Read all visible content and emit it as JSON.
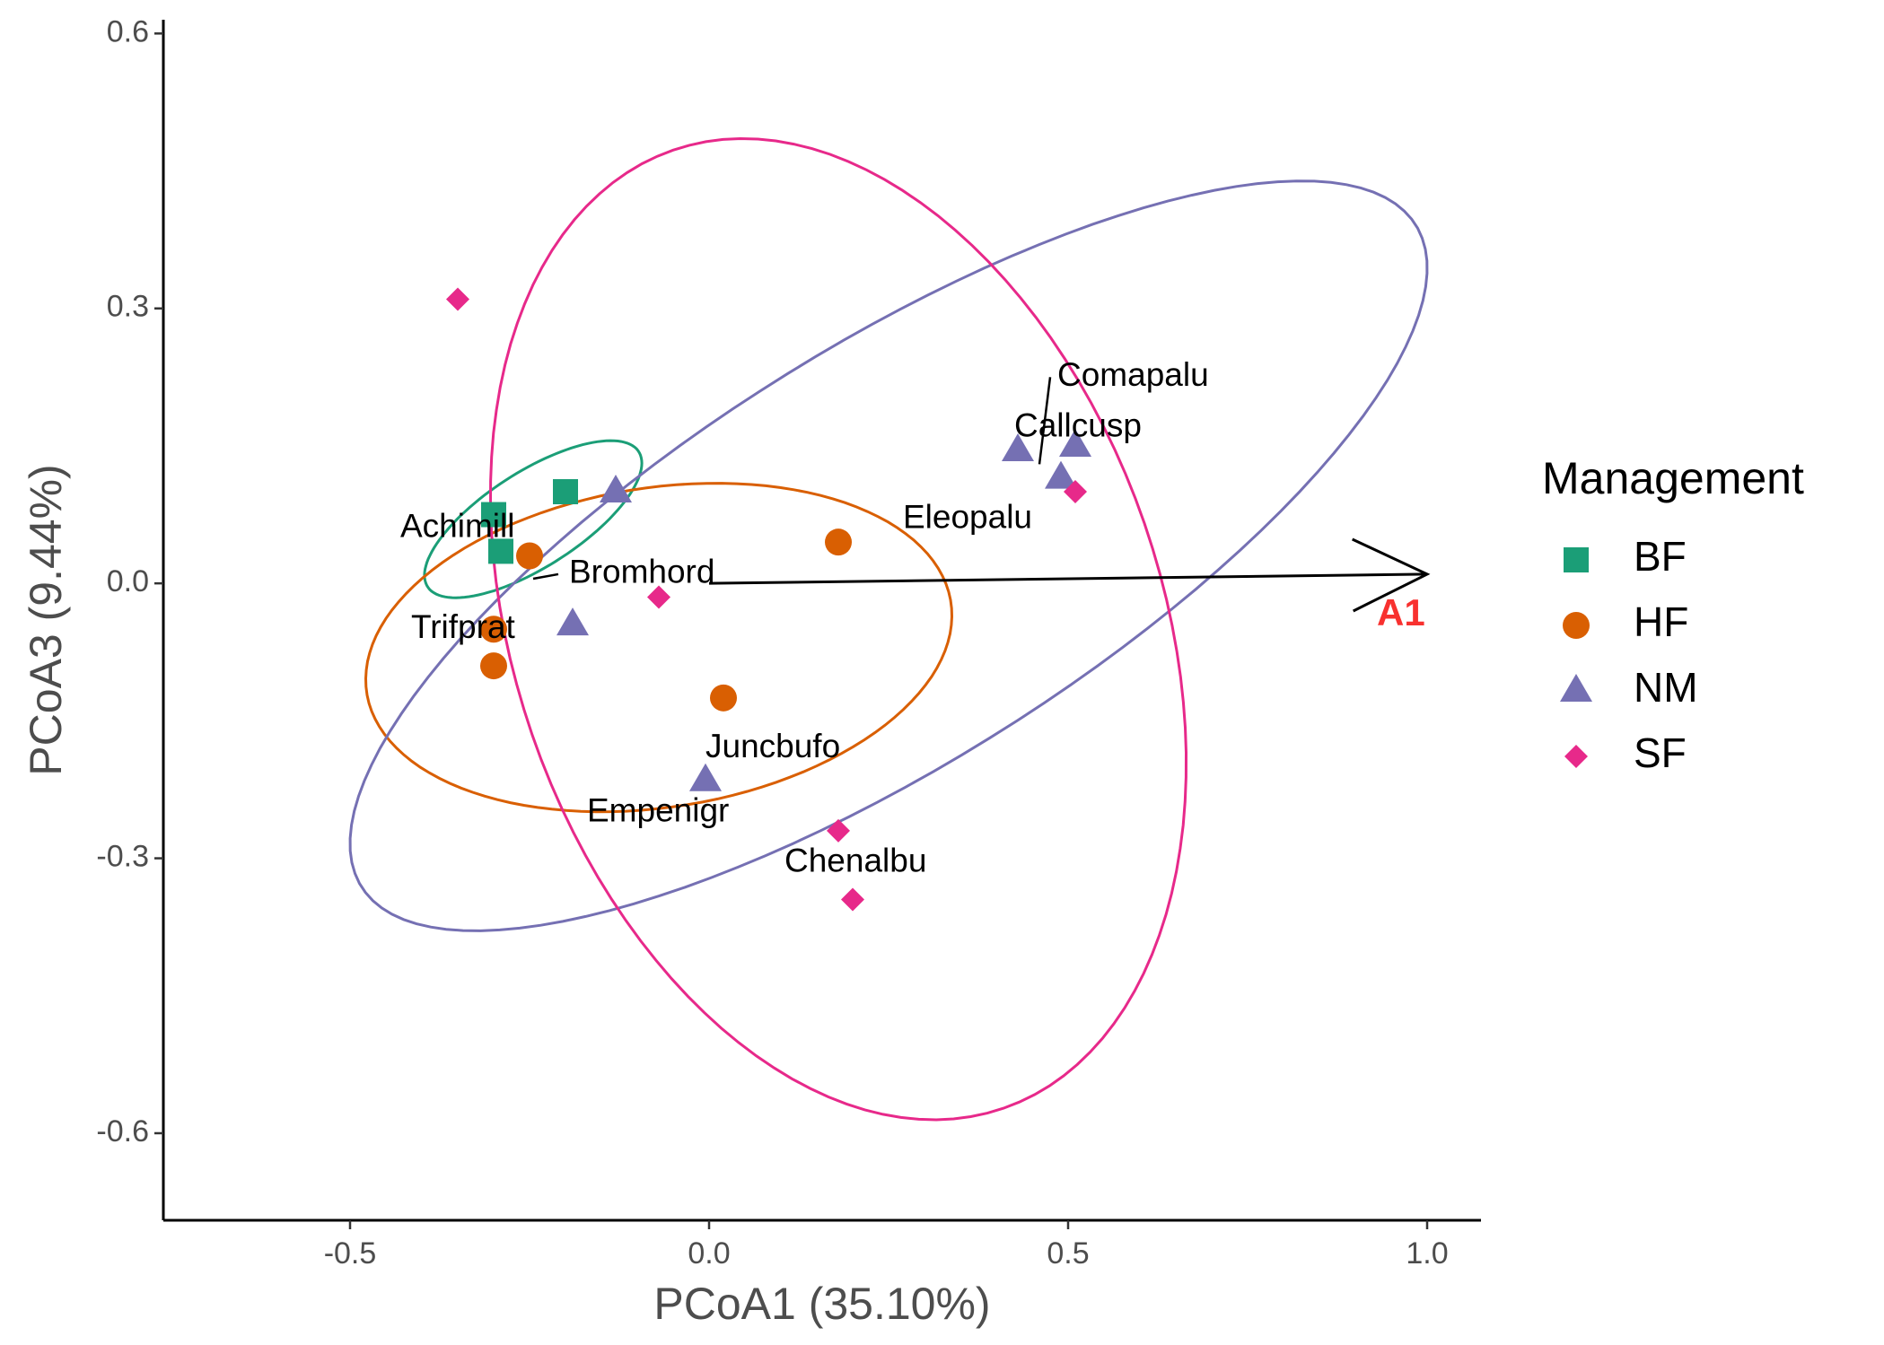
{
  "chart_data": {
    "type": "scatter",
    "xlabel": "PCoA1 (35.10%)",
    "ylabel": "PCoA3 (9.44%)",
    "xlim": [
      -0.76,
      1.075
    ],
    "ylim": [
      -0.695,
      0.615
    ],
    "x_ticks": [
      -0.5,
      0.0,
      0.5,
      1.0
    ],
    "x_tick_labels": [
      "-0.5",
      "0.0",
      "0.5",
      "1.0"
    ],
    "y_ticks": [
      -0.6,
      -0.3,
      0.0,
      0.3,
      0.6
    ],
    "y_tick_labels": [
      "-0.6",
      "-0.3",
      "0.0",
      "0.3",
      "0.6"
    ],
    "grid": false,
    "legend": {
      "title": "Management",
      "placement": "right",
      "entries": [
        {
          "label": "BF",
          "shape": "square",
          "color": "#1b9e77"
        },
        {
          "label": "HF",
          "shape": "circle",
          "color": "#d95f02"
        },
        {
          "label": "NM",
          "shape": "triangle",
          "color": "#7570b3"
        },
        {
          "label": "SF",
          "shape": "diamond",
          "color": "#e7298a"
        }
      ]
    },
    "series": [
      {
        "name": "BF",
        "color": "#1b9e77",
        "shape": "square",
        "points": [
          [
            -0.3,
            0.075
          ],
          [
            -0.2,
            0.1
          ],
          [
            -0.29,
            0.035
          ]
        ],
        "ellipse": {
          "cx": -0.245,
          "cy": 0.07,
          "rx": 0.165,
          "ry": 0.055,
          "angle_deg": 25
        }
      },
      {
        "name": "HF",
        "color": "#d95f02",
        "shape": "circle",
        "points": [
          [
            -0.25,
            0.03
          ],
          [
            -0.3,
            -0.05
          ],
          [
            -0.3,
            -0.09
          ],
          [
            0.02,
            -0.125
          ],
          [
            0.18,
            0.045
          ]
        ],
        "ellipse": {
          "cx": -0.07,
          "cy": -0.07,
          "rx": 0.41,
          "ry": 0.175,
          "angle_deg": 6
        }
      },
      {
        "name": "NM",
        "color": "#7570b3",
        "shape": "triangle",
        "points": [
          [
            -0.13,
            0.1
          ],
          [
            -0.19,
            -0.045
          ],
          [
            -0.005,
            -0.215
          ],
          [
            0.43,
            0.145
          ],
          [
            0.51,
            0.15
          ],
          [
            0.49,
            0.115
          ]
        ],
        "ellipse": {
          "cx": 0.25,
          "cy": 0.03,
          "rx": 0.82,
          "ry": 0.24,
          "angle_deg": 25
        }
      },
      {
        "name": "SF",
        "color": "#e7298a",
        "shape": "diamond",
        "points": [
          [
            -0.35,
            0.31
          ],
          [
            -0.07,
            -0.015
          ],
          [
            0.18,
            -0.27
          ],
          [
            0.2,
            -0.345
          ],
          [
            0.51,
            0.1
          ]
        ],
        "ellipse": {
          "cx": 0.18,
          "cy": -0.05,
          "rx": 0.58,
          "ry": 0.43,
          "angle_deg": -55
        }
      }
    ],
    "species": [
      {
        "name": "Comapalu",
        "x": 0.485,
        "y": 0.225
      },
      {
        "name": "Callcusp",
        "x": 0.425,
        "y": 0.17
      },
      {
        "name": "Eleopalu",
        "x": 0.27,
        "y": 0.07
      },
      {
        "name": "Achimill",
        "x": -0.43,
        "y": 0.06
      },
      {
        "name": "Bromhord",
        "x": -0.195,
        "y": 0.01
      },
      {
        "name": "Trifprat",
        "x": -0.415,
        "y": -0.05
      },
      {
        "name": "Juncbufo",
        "x": -0.005,
        "y": -0.18
      },
      {
        "name": "Empenigr",
        "x": -0.17,
        "y": -0.25
      },
      {
        "name": "Chenalbu",
        "x": 0.105,
        "y": -0.305
      }
    ],
    "species_leaders": [
      {
        "x1": 0.475,
        "y1": 0.225,
        "x2": 0.46,
        "y2": 0.13
      },
      {
        "x1": -0.21,
        "y1": 0.01,
        "x2": -0.245,
        "y2": 0.005
      }
    ],
    "vector": {
      "label": "A1",
      "x0": 0.0,
      "y0": 0.0,
      "x1": 1.0,
      "y1": 0.01,
      "color": "#000000",
      "label_color": "#f8312f",
      "label_x": 0.93,
      "label_y": -0.035
    }
  }
}
